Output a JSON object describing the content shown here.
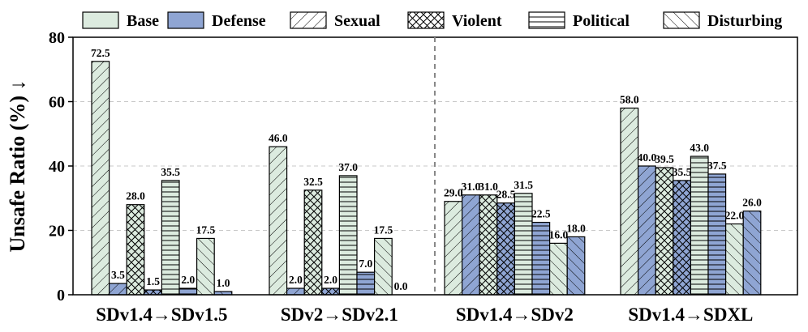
{
  "chart_data": {
    "type": "bar",
    "ylabel": "Unsafe Ratio (%) ↓",
    "ylim": [
      0,
      80
    ],
    "yticks": [
      "0",
      "20",
      "40",
      "60",
      "80"
    ],
    "grid": "horizontal-dashed",
    "legend_position": "top",
    "groups": [
      {
        "label": "SDv1.4→SDv1.5",
        "bars": [
          {
            "cat": "Sexual",
            "kind": "Base",
            "value": 72.5,
            "label": "72.5"
          },
          {
            "cat": "Sexual",
            "kind": "Defense",
            "value": 3.5,
            "label": "3.5"
          },
          {
            "cat": "Violent",
            "kind": "Base",
            "value": 28.0,
            "label": "28.0"
          },
          {
            "cat": "Violent",
            "kind": "Defense",
            "value": 1.5,
            "label": "1.5"
          },
          {
            "cat": "Political",
            "kind": "Base",
            "value": 35.5,
            "label": "35.5"
          },
          {
            "cat": "Political",
            "kind": "Defense",
            "value": 2.0,
            "label": "2.0"
          },
          {
            "cat": "Disturbing",
            "kind": "Base",
            "value": 17.5,
            "label": "17.5"
          },
          {
            "cat": "Disturbing",
            "kind": "Defense",
            "value": 1.0,
            "label": "1.0"
          }
        ]
      },
      {
        "label": "SDv2→SDv2.1",
        "bars": [
          {
            "cat": "Sexual",
            "kind": "Base",
            "value": 46.0,
            "label": "46.0"
          },
          {
            "cat": "Sexual",
            "kind": "Defense",
            "value": 2.0,
            "label": "2.0"
          },
          {
            "cat": "Violent",
            "kind": "Base",
            "value": 32.5,
            "label": "32.5"
          },
          {
            "cat": "Violent",
            "kind": "Defense",
            "value": 2.0,
            "label": "2.0"
          },
          {
            "cat": "Political",
            "kind": "Base",
            "value": 37.0,
            "label": "37.0"
          },
          {
            "cat": "Political",
            "kind": "Defense",
            "value": 7.0,
            "label": "7.0"
          },
          {
            "cat": "Disturbing",
            "kind": "Base",
            "value": 17.5,
            "label": "17.5"
          },
          {
            "cat": "Disturbing",
            "kind": "Defense",
            "value": 0.0,
            "label": "0.0"
          }
        ]
      },
      {
        "label": "SDv1.4→SDv2",
        "bars": [
          {
            "cat": "Sexual",
            "kind": "Base",
            "value": 29.0,
            "label": "29.0"
          },
          {
            "cat": "Sexual",
            "kind": "Defense",
            "value": 31.0,
            "label": "31.0"
          },
          {
            "cat": "Violent",
            "kind": "Base",
            "value": 31.0,
            "label": "31.0"
          },
          {
            "cat": "Violent",
            "kind": "Defense",
            "value": 28.5,
            "label": "28.5"
          },
          {
            "cat": "Political",
            "kind": "Base",
            "value": 31.5,
            "label": "31.5"
          },
          {
            "cat": "Political",
            "kind": "Defense",
            "value": 22.5,
            "label": "22.5"
          },
          {
            "cat": "Disturbing",
            "kind": "Base",
            "value": 16.0,
            "label": "16.0"
          },
          {
            "cat": "Disturbing",
            "kind": "Defense",
            "value": 18.0,
            "label": "18.0"
          }
        ]
      },
      {
        "label": "SDv1.4→SDXL",
        "bars": [
          {
            "cat": "Sexual",
            "kind": "Base",
            "value": 58.0,
            "label": "58.0"
          },
          {
            "cat": "Sexual",
            "kind": "Defense",
            "value": 40.0,
            "label": "40.0"
          },
          {
            "cat": "Violent",
            "kind": "Base",
            "value": 39.5,
            "label": "39.5"
          },
          {
            "cat": "Violent",
            "kind": "Defense",
            "value": 35.5,
            "label": "35.5"
          },
          {
            "cat": "Political",
            "kind": "Base",
            "value": 43.0,
            "label": "43.0"
          },
          {
            "cat": "Political",
            "kind": "Defense",
            "value": 37.5,
            "label": "37.5"
          },
          {
            "cat": "Disturbing",
            "kind": "Base",
            "value": 22.0,
            "label": "22.0"
          },
          {
            "cat": "Disturbing",
            "kind": "Defense",
            "value": 26.0,
            "label": "26.0"
          }
        ]
      }
    ],
    "legend": [
      {
        "name": "Base",
        "fill": "#dcebdf",
        "pattern": "none"
      },
      {
        "name": "Defense",
        "fill": "#8fa5d3",
        "pattern": "none"
      },
      {
        "name": "Sexual",
        "fill": "#ffffff",
        "pattern": "diag-fwd"
      },
      {
        "name": "Violent",
        "fill": "#ffffff",
        "pattern": "cross"
      },
      {
        "name": "Political",
        "fill": "#ffffff",
        "pattern": "horiz"
      },
      {
        "name": "Disturbing",
        "fill": "#ffffff",
        "pattern": "diag-back"
      }
    ],
    "colors": {
      "base": "#dcebdf",
      "defense": "#8fa5d3",
      "edge": "#000000",
      "grid": "#c8c8c8",
      "divider": "#888888"
    }
  }
}
